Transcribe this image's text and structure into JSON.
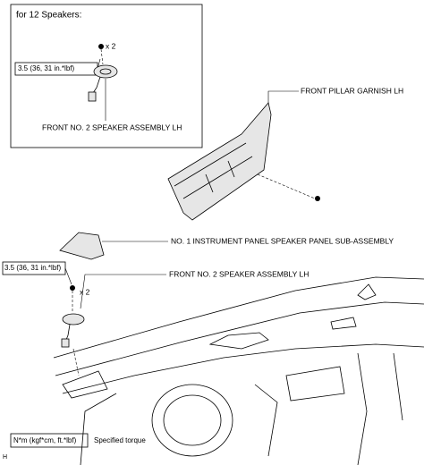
{
  "inset": {
    "title": "for 12 Speakers:",
    "quantity": "x 2",
    "torque": "3.5 (36, 31 in.*lbf)",
    "label": "FRONT NO. 2 SPEAKER ASSEMBLY LH"
  },
  "callouts": [
    "FRONT PILLAR GARNISH LH",
    "NO. 1 INSTRUMENT PANEL SPEAKER PANEL SUB-ASSEMBLY",
    "FRONT NO. 2 SPEAKER ASSEMBLY LH"
  ],
  "main": {
    "torque": "3.5 (36, 31 in.*lbf)",
    "quantity": "x 2"
  },
  "legend": {
    "symbol": "N*m (kgf*cm, ft.*lbf)",
    "text": "Specified torque"
  },
  "code": "H"
}
